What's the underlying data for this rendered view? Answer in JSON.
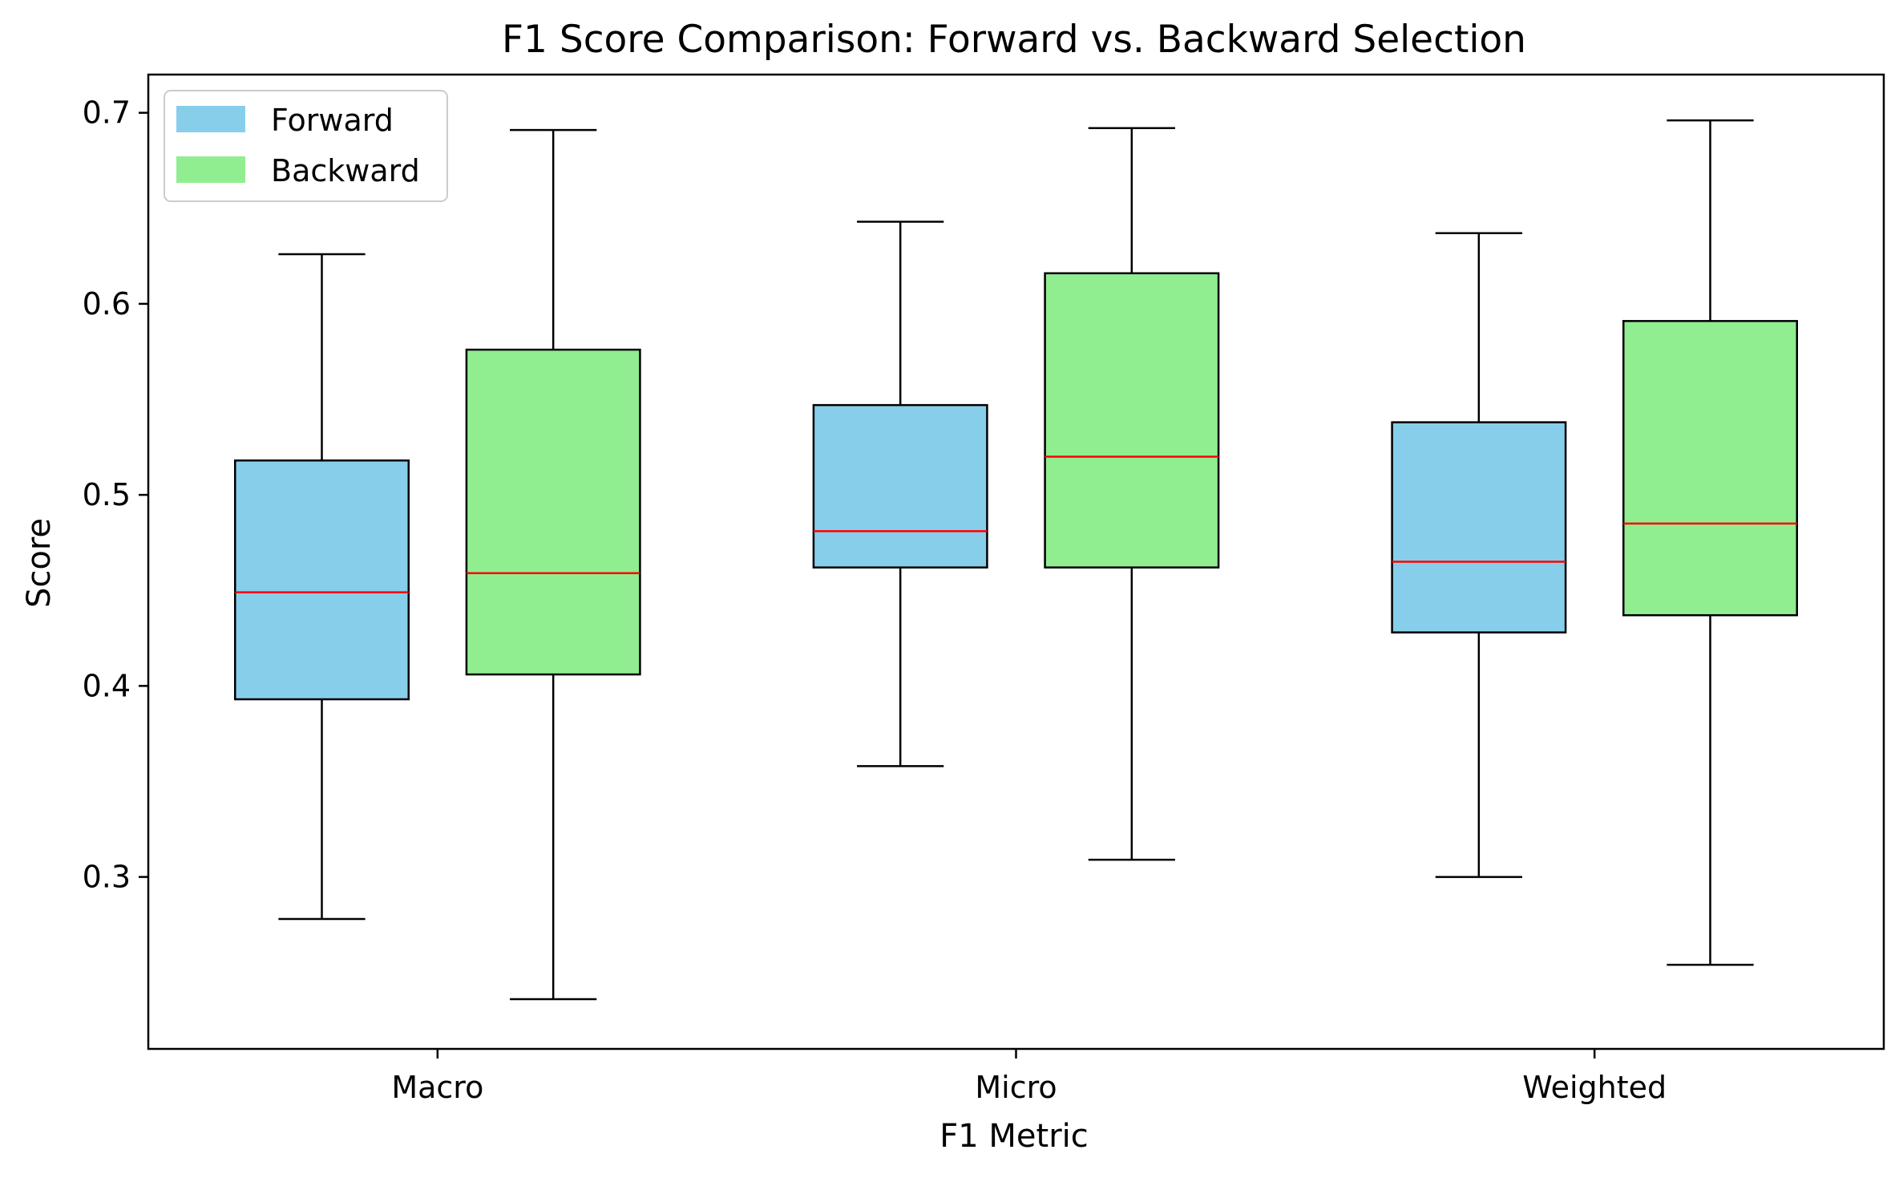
{
  "chart_data": {
    "type": "box",
    "title": "F1 Score Comparison: Forward vs. Backward Selection",
    "xlabel": "F1 Metric",
    "ylabel": "Score",
    "categories": [
      "Macro",
      "Micro",
      "Weighted"
    ],
    "ylim": [
      0.21,
      0.72
    ],
    "yticks": [
      0.3,
      0.4,
      0.5,
      0.6,
      0.7
    ],
    "ytick_labels": [
      "0.3",
      "0.4",
      "0.5",
      "0.6",
      "0.7"
    ],
    "grid": false,
    "legend_position": "top-left",
    "median_color": "#ff0000",
    "series": [
      {
        "name": "Forward",
        "color": "#87ceeb",
        "boxes": [
          {
            "whisker_low": 0.278,
            "q1": 0.393,
            "median": 0.449,
            "q3": 0.518,
            "whisker_high": 0.626
          },
          {
            "whisker_low": 0.358,
            "q1": 0.462,
            "median": 0.481,
            "q3": 0.547,
            "whisker_high": 0.643
          },
          {
            "whisker_low": 0.3,
            "q1": 0.428,
            "median": 0.465,
            "q3": 0.538,
            "whisker_high": 0.637
          }
        ]
      },
      {
        "name": "Backward",
        "color": "#90ee90",
        "boxes": [
          {
            "whisker_low": 0.236,
            "q1": 0.406,
            "median": 0.459,
            "q3": 0.576,
            "whisker_high": 0.691
          },
          {
            "whisker_low": 0.309,
            "q1": 0.462,
            "median": 0.52,
            "q3": 0.616,
            "whisker_high": 0.692
          },
          {
            "whisker_low": 0.254,
            "q1": 0.437,
            "median": 0.485,
            "q3": 0.591,
            "whisker_high": 0.696
          }
        ]
      }
    ]
  }
}
